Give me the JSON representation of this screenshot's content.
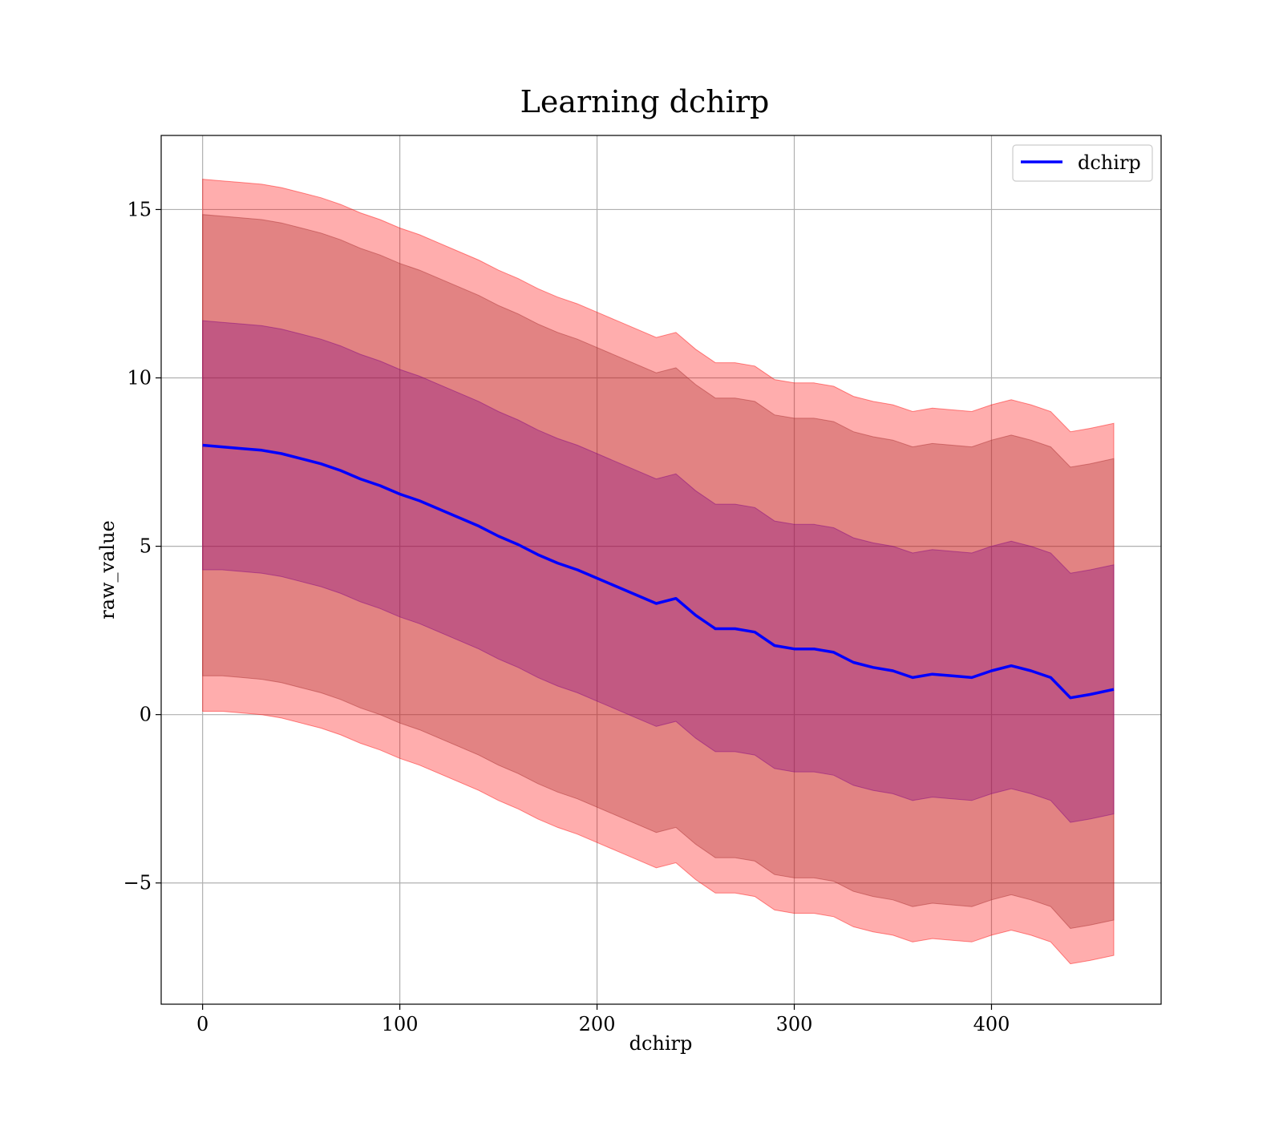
{
  "chart_data": {
    "type": "area",
    "title": "Learning dchirp",
    "xlabel": "dchirp",
    "ylabel": "raw_value",
    "xlim": [
      -21,
      486
    ],
    "ylim": [
      -8.6,
      17.2
    ],
    "x_ticks": [
      0,
      100,
      200,
      300,
      400
    ],
    "x_tick_labels": [
      "0",
      "100",
      "200",
      "300",
      "400"
    ],
    "y_ticks": [
      -5,
      0,
      5,
      10,
      15
    ],
    "y_tick_labels": [
      "−5",
      "0",
      "5",
      "10",
      "15"
    ],
    "grid": true,
    "legend": {
      "placement": "top-right",
      "entries": [
        {
          "label": "dchirp",
          "color": "#0000ff"
        }
      ]
    },
    "colors": {
      "line": "#0000ff",
      "band_outer": "#ff0000",
      "band_middle": "#a52a2a",
      "band_inner": "#800080",
      "grid": "#b0b0b0"
    },
    "series": [
      {
        "name": "dchirp",
        "x": [
          0,
          10,
          20,
          30,
          40,
          50,
          60,
          70,
          80,
          90,
          100,
          110,
          120,
          130,
          140,
          150,
          160,
          170,
          180,
          190,
          200,
          210,
          220,
          230,
          240,
          250,
          260,
          270,
          280,
          290,
          300,
          310,
          320,
          330,
          340,
          350,
          360,
          370,
          380,
          390,
          400,
          410,
          420,
          430,
          440,
          450,
          462
        ],
        "mean": [
          8.0,
          7.95,
          7.9,
          7.85,
          7.75,
          7.6,
          7.45,
          7.25,
          7.0,
          6.8,
          6.55,
          6.35,
          6.1,
          5.85,
          5.6,
          5.3,
          5.05,
          4.75,
          4.5,
          4.3,
          4.05,
          3.8,
          3.55,
          3.3,
          3.45,
          2.95,
          2.55,
          2.55,
          2.45,
          2.05,
          1.95,
          1.95,
          1.85,
          1.55,
          1.4,
          1.3,
          1.1,
          1.2,
          1.15,
          1.1,
          1.3,
          1.45,
          1.3,
          1.1,
          0.5,
          0.6,
          0.75
        ],
        "band_inner": {
          "lower": [
            4.3,
            4.3,
            4.25,
            4.2,
            4.1,
            3.95,
            3.8,
            3.6,
            3.35,
            3.15,
            2.9,
            2.7,
            2.45,
            2.2,
            1.95,
            1.65,
            1.4,
            1.1,
            0.85,
            0.65,
            0.4,
            0.15,
            -0.1,
            -0.35,
            -0.2,
            -0.7,
            -1.1,
            -1.1,
            -1.2,
            -1.6,
            -1.7,
            -1.7,
            -1.8,
            -2.1,
            -2.25,
            -2.35,
            -2.55,
            -2.45,
            -2.5,
            -2.55,
            -2.35,
            -2.2,
            -2.35,
            -2.55,
            -3.2,
            -3.1,
            -2.95
          ],
          "upper": [
            11.7,
            11.65,
            11.6,
            11.55,
            11.45,
            11.3,
            11.15,
            10.95,
            10.7,
            10.5,
            10.25,
            10.05,
            9.8,
            9.55,
            9.3,
            9.0,
            8.75,
            8.45,
            8.2,
            8.0,
            7.75,
            7.5,
            7.25,
            7.0,
            7.15,
            6.65,
            6.25,
            6.25,
            6.15,
            5.75,
            5.65,
            5.65,
            5.55,
            5.25,
            5.1,
            5.0,
            4.8,
            4.9,
            4.85,
            4.8,
            5.0,
            5.15,
            5.0,
            4.8,
            4.2,
            4.3,
            4.45
          ]
        },
        "band_middle": {
          "lower": [
            1.15,
            1.15,
            1.1,
            1.05,
            0.95,
            0.8,
            0.65,
            0.45,
            0.2,
            0.0,
            -0.25,
            -0.45,
            -0.7,
            -0.95,
            -1.2,
            -1.5,
            -1.75,
            -2.05,
            -2.3,
            -2.5,
            -2.75,
            -3.0,
            -3.25,
            -3.5,
            -3.35,
            -3.85,
            -4.25,
            -4.25,
            -4.35,
            -4.75,
            -4.85,
            -4.85,
            -4.95,
            -5.25,
            -5.4,
            -5.5,
            -5.7,
            -5.6,
            -5.65,
            -5.7,
            -5.5,
            -5.35,
            -5.5,
            -5.7,
            -6.35,
            -6.25,
            -6.1
          ],
          "upper": [
            14.85,
            14.8,
            14.75,
            14.7,
            14.6,
            14.45,
            14.3,
            14.1,
            13.85,
            13.65,
            13.4,
            13.2,
            12.95,
            12.7,
            12.45,
            12.15,
            11.9,
            11.6,
            11.35,
            11.15,
            10.9,
            10.65,
            10.4,
            10.15,
            10.3,
            9.8,
            9.4,
            9.4,
            9.3,
            8.9,
            8.8,
            8.8,
            8.7,
            8.4,
            8.25,
            8.15,
            7.95,
            8.05,
            8.0,
            7.95,
            8.15,
            8.3,
            8.15,
            7.95,
            7.35,
            7.45,
            7.6
          ]
        },
        "band_outer": {
          "lower": [
            0.1,
            0.1,
            0.05,
            0.0,
            -0.1,
            -0.25,
            -0.4,
            -0.6,
            -0.85,
            -1.05,
            -1.3,
            -1.5,
            -1.75,
            -2.0,
            -2.25,
            -2.55,
            -2.8,
            -3.1,
            -3.35,
            -3.55,
            -3.8,
            -4.05,
            -4.3,
            -4.55,
            -4.4,
            -4.9,
            -5.3,
            -5.3,
            -5.4,
            -5.8,
            -5.9,
            -5.9,
            -6.0,
            -6.3,
            -6.45,
            -6.55,
            -6.75,
            -6.65,
            -6.7,
            -6.75,
            -6.55,
            -6.4,
            -6.55,
            -6.75,
            -7.4,
            -7.3,
            -7.15
          ],
          "upper": [
            15.9,
            15.85,
            15.8,
            15.75,
            15.65,
            15.5,
            15.35,
            15.15,
            14.9,
            14.7,
            14.45,
            14.25,
            14.0,
            13.75,
            13.5,
            13.2,
            12.95,
            12.65,
            12.4,
            12.2,
            11.95,
            11.7,
            11.45,
            11.2,
            11.35,
            10.85,
            10.45,
            10.45,
            10.35,
            9.95,
            9.85,
            9.85,
            9.75,
            9.45,
            9.3,
            9.2,
            9.0,
            9.1,
            9.05,
            9.0,
            9.2,
            9.35,
            9.2,
            9.0,
            8.4,
            8.5,
            8.65
          ]
        }
      }
    ]
  }
}
